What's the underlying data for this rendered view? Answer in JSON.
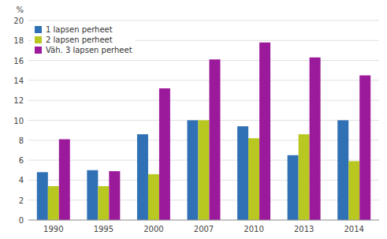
{
  "chart_data": {
    "type": "bar",
    "categories": [
      "1990",
      "1995",
      "2000",
      "2007",
      "2010",
      "2013",
      "2014"
    ],
    "series": [
      {
        "name": "1 lapsen perheet",
        "color": "#3070B4",
        "values": [
          4.8,
          5.0,
          8.6,
          10.0,
          9.4,
          6.5,
          10.0
        ]
      },
      {
        "name": "2 lapsen perheet",
        "color": "#B8C820",
        "values": [
          3.4,
          3.4,
          4.6,
          10.0,
          8.2,
          8.6,
          5.9
        ]
      },
      {
        "name": "Väh. 3 lapsen perheet",
        "color": "#9B1A9B",
        "values": [
          8.1,
          4.9,
          13.2,
          16.1,
          17.8,
          16.3,
          14.5
        ]
      }
    ],
    "ylabel": "%",
    "ylim": [
      0,
      20
    ],
    "yticks": [
      0,
      2,
      4,
      6,
      8,
      10,
      12,
      14,
      16,
      18,
      20
    ],
    "grid": true,
    "legend": "upper left"
  }
}
